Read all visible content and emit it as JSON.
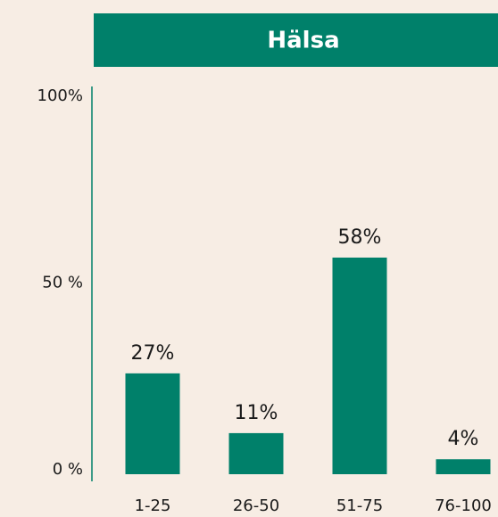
{
  "chart_data": {
    "type": "bar",
    "title": "Hälsa",
    "categories": [
      "1-25",
      "26-50",
      "51-75",
      "76-100"
    ],
    "values": [
      27,
      11,
      58,
      4
    ],
    "value_labels": [
      "27%",
      "11%",
      "58%",
      "4%"
    ],
    "color": "#00806a",
    "ylim": [
      0,
      100
    ],
    "yticks": [
      {
        "value": 0,
        "label": "0 %"
      },
      {
        "value": 50,
        "label": "50 %"
      },
      {
        "value": 100,
        "label": "100%"
      }
    ],
    "grid": false
  }
}
